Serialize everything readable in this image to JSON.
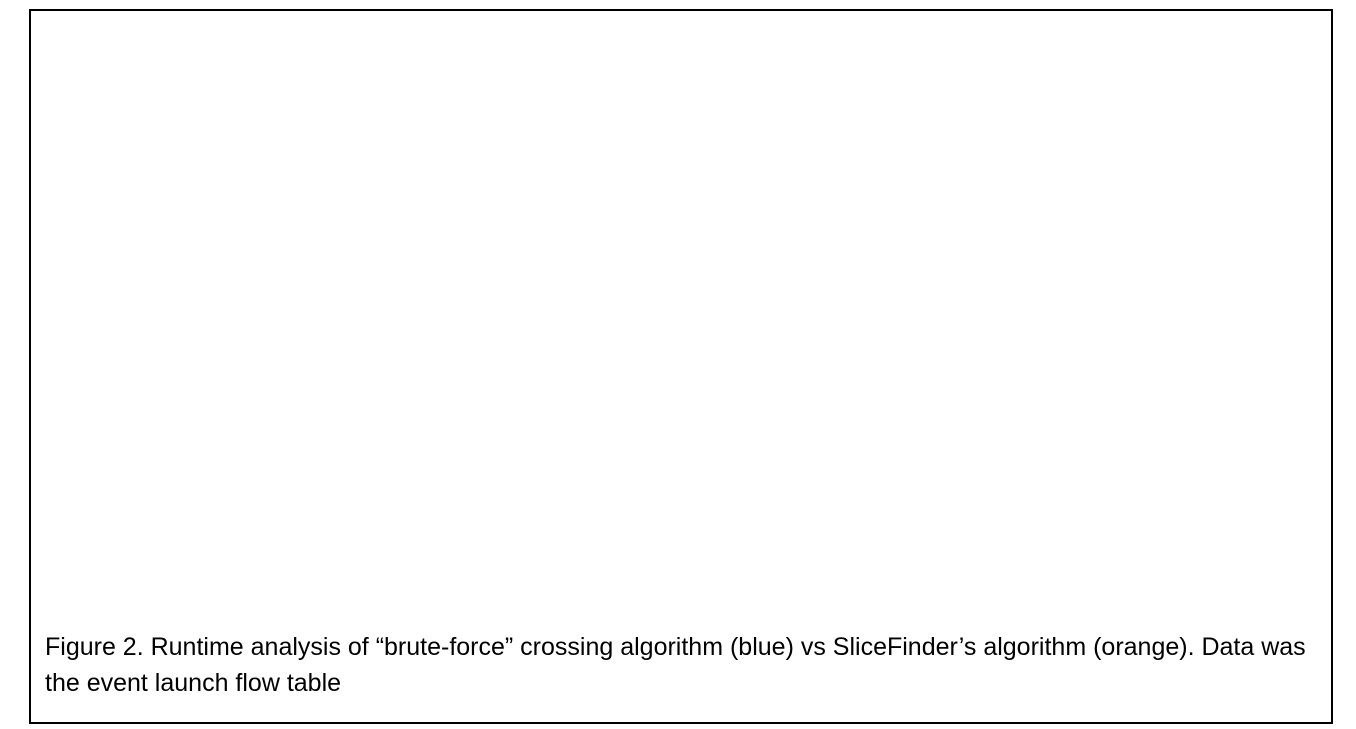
{
  "figure": {
    "caption": "Figure 2. Runtime analysis of “brute-force” crossing algorithm (blue) vs SliceFinder’s algorithm (orange). Data was the event launch flow table"
  }
}
